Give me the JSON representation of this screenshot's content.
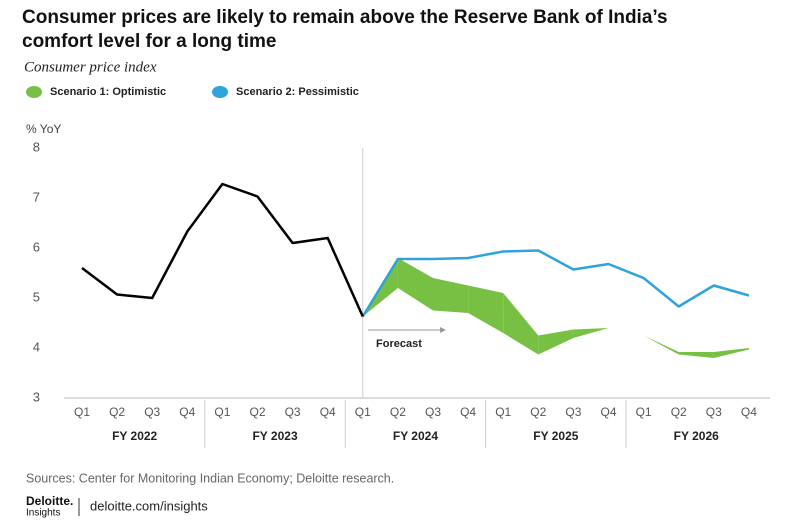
{
  "chart_data": {
    "type": "line",
    "title": [
      "Consumer prices are likely to remain above the Reserve Bank of India’s",
      "comfort level for a long time"
    ],
    "subtitle": "Consumer price index",
    "y_label": "% YoY",
    "annotation": "Forecast",
    "forecast_start": 8,
    "groups": [
      {
        "label": "FY 2022",
        "categories": [
          "Q1",
          "Q2",
          "Q3",
          "Q4"
        ]
      },
      {
        "label": "FY 2023",
        "categories": [
          "Q1",
          "Q2",
          "Q3",
          "Q4"
        ]
      },
      {
        "label": "FY 2024",
        "categories": [
          "Q1",
          "Q2",
          "Q3",
          "Q4"
        ]
      },
      {
        "label": "FY 2025",
        "categories": [
          "Q1",
          "Q2",
          "Q3",
          "Q4"
        ]
      },
      {
        "label": "FY 2026",
        "categories": [
          "Q1",
          "Q2",
          "Q3",
          "Q4"
        ]
      }
    ],
    "ylim": [
      3,
      8
    ],
    "yticks": [
      3,
      4,
      5,
      6,
      7,
      8
    ],
    "actual": {
      "color": "#000000",
      "values": [
        5.6,
        5.07,
        5.0,
        6.33,
        7.28,
        7.03,
        6.1,
        6.2,
        4.63,
        null,
        null,
        null,
        null,
        null,
        null,
        null,
        null,
        null,
        null,
        null
      ]
    },
    "series": [
      {
        "name": "Scenario 1: Optimistic",
        "color": "#78c043",
        "low": [
          null,
          null,
          null,
          null,
          null,
          null,
          null,
          null,
          4.63,
          5.2,
          4.75,
          4.7,
          4.3,
          3.87,
          4.2,
          4.4,
          4.25,
          3.87,
          3.8,
          3.97
        ],
        "high": [
          null,
          null,
          null,
          null,
          null,
          null,
          null,
          null,
          4.63,
          5.8,
          5.4,
          5.25,
          5.1,
          4.25,
          4.37,
          4.4,
          4.25,
          3.92,
          3.92,
          4.0
        ]
      },
      {
        "name": "Scenario 2: Pessimistic",
        "color": "#2ea3dc",
        "values": [
          null,
          null,
          null,
          null,
          null,
          null,
          null,
          null,
          4.63,
          5.78,
          5.78,
          5.8,
          5.93,
          5.95,
          5.57,
          5.68,
          5.4,
          4.83,
          5.25,
          5.05
        ]
      }
    ],
    "source": "Sources: Center for Monitoring Indian Economy; Deloitte research.",
    "brand": [
      "Deloitte.",
      "Insights"
    ],
    "url": "deloitte.com/insights"
  }
}
